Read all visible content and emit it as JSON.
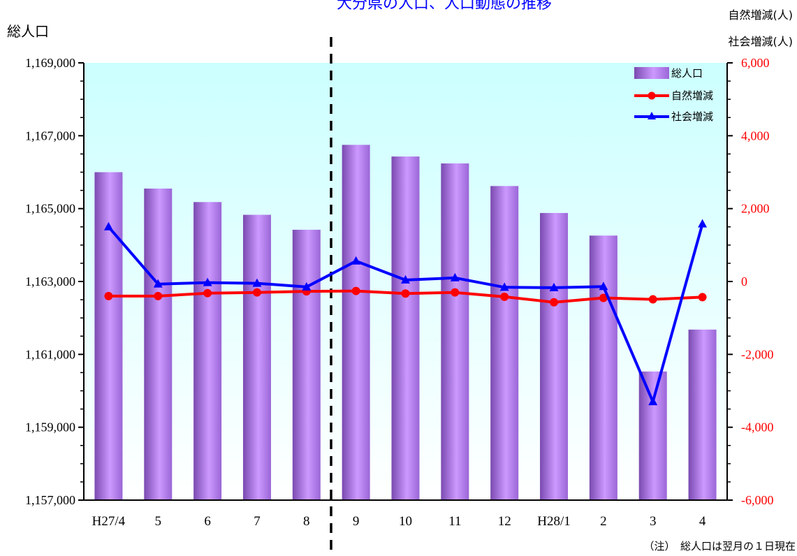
{
  "chart_data": {
    "type": "bar+line",
    "title": "大分県の人口、人口動態の推移",
    "ylabel_left": "総人口",
    "ylabel_right_1": "自然増減(人)",
    "ylabel_right_2": "社会増減(人)",
    "note": "（注）　総人口は翌月の１日現在",
    "categories": [
      "H27/4",
      "5",
      "6",
      "7",
      "8",
      "9",
      "10",
      "11",
      "12",
      "H28/1",
      "2",
      "3",
      "4"
    ],
    "left_axis": {
      "ylim": [
        1157000,
        1169000
      ],
      "ticks": [
        "1,157,000",
        "1,159,000",
        "1,161,000",
        "1,163,000",
        "1,165,000",
        "1,167,000",
        "1,169,000"
      ],
      "tick_values": [
        1157000,
        1159000,
        1161000,
        1163000,
        1165000,
        1167000,
        1169000
      ]
    },
    "right_axis": {
      "ylim": [
        -6000,
        6000
      ],
      "ticks": [
        "-6,000",
        "-4,000",
        "-2,000",
        "0",
        "2,000",
        "4,000",
        "6,000"
      ],
      "tick_values": [
        -6000,
        -4000,
        -2000,
        0,
        2000,
        4000,
        6000
      ]
    },
    "series": [
      {
        "name": "総人口",
        "type": "bar",
        "axis": "left",
        "values": [
          1166000,
          1165550,
          1165180,
          1164830,
          1164420,
          1166750,
          1166430,
          1166240,
          1165620,
          1164880,
          1164260,
          1160530,
          1161680
        ]
      },
      {
        "name": "自然増減",
        "type": "line",
        "axis": "right",
        "color": "#ff0000",
        "marker": "circle",
        "values": [
          -400,
          -400,
          -320,
          -300,
          -270,
          -260,
          -330,
          -300,
          -420,
          -570,
          -450,
          -490,
          -430
        ]
      },
      {
        "name": "社会増減",
        "type": "line",
        "axis": "right",
        "color": "#0000ff",
        "marker": "triangle",
        "values": [
          1500,
          -70,
          -30,
          -50,
          -150,
          560,
          40,
          100,
          -160,
          -170,
          -140,
          -3300,
          1580
        ]
      }
    ],
    "divider_after_category": "8",
    "legend_position": "top-right",
    "colors": {
      "bar_light": "#cc99ff",
      "bar_dark": "#7a4ab0",
      "plot_bg_top": "#ccffff",
      "plot_bg_bottom": "#ffffff",
      "title_color": "#0000ff"
    }
  }
}
